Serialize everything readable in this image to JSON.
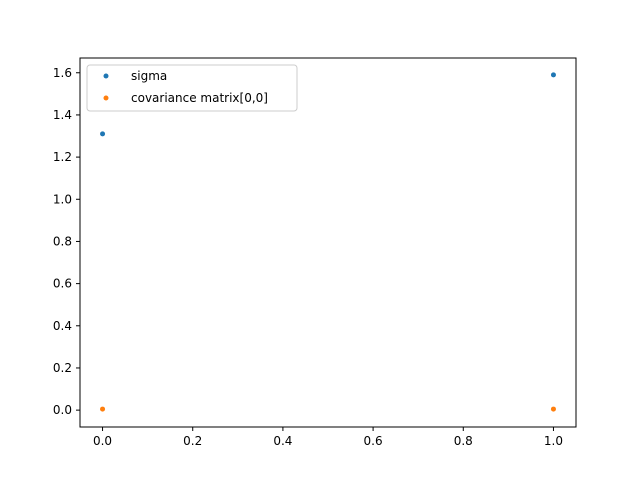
{
  "chart_data": {
    "type": "scatter",
    "title": "",
    "xlabel": "",
    "ylabel": "",
    "xlim": [
      -0.05,
      1.05
    ],
    "ylim": [
      -0.08,
      1.67
    ],
    "xticks": [
      0.0,
      0.2,
      0.4,
      0.6,
      0.8,
      1.0
    ],
    "xtick_labels": [
      "0.0",
      "0.2",
      "0.4",
      "0.6",
      "0.8",
      "1.0"
    ],
    "yticks": [
      0.0,
      0.2,
      0.4,
      0.6,
      0.8,
      1.0,
      1.2,
      1.4,
      1.6
    ],
    "ytick_labels": [
      "0.0",
      "0.2",
      "0.4",
      "0.6",
      "0.8",
      "1.0",
      "1.2",
      "1.4",
      "1.6"
    ],
    "grid": false,
    "legend_position": "top-left",
    "series": [
      {
        "name": "sigma",
        "color": "#1f77b4",
        "points": [
          {
            "x": 0.0,
            "y": 1.31
          },
          {
            "x": 1.0,
            "y": 1.59
          }
        ]
      },
      {
        "name": "covariance matrix[0,0]",
        "color": "#ff7f0e",
        "points": [
          {
            "x": 0.0,
            "y": 0.005
          },
          {
            "x": 1.0,
            "y": 0.005
          }
        ]
      }
    ]
  }
}
